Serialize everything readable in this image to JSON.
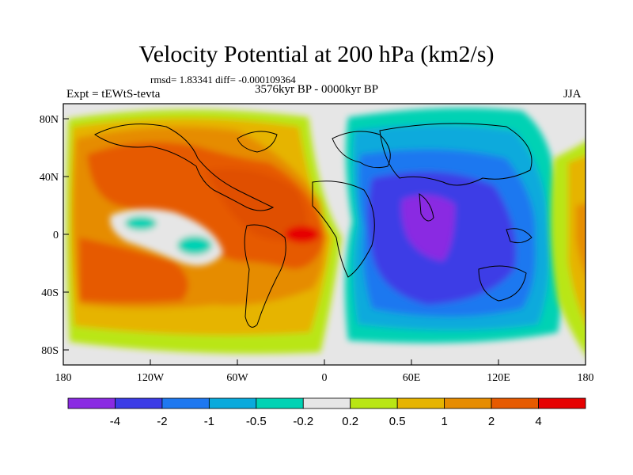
{
  "title": "Velocity Potential at 200 hPa (km2/s)",
  "stats": "rmsd= 1.83341 diff= -0.000109364",
  "experiment": "Expt = tEWtS-tevta",
  "period": "3576kyr BP - 0000kyr BP",
  "season": "JJA",
  "map": {
    "lat_ticks": [
      "80N",
      "40N",
      "0",
      "40S",
      "80S"
    ],
    "lon_ticks": [
      "180",
      "120W",
      "60W",
      "0",
      "60E",
      "120E",
      "180"
    ],
    "missing_color": "#e6e6e6",
    "centers": [
      {
        "label": "strong-positive-east-atlantic",
        "lon": -20,
        "lat": 0,
        "value": 4.3
      },
      {
        "label": "positive-caribbean",
        "lon": -55,
        "lat": 20,
        "value": 3
      },
      {
        "label": "negative-south-asia",
        "lon": 70,
        "lat": 10,
        "value": -4.2
      },
      {
        "label": "near-zero-east-pacific",
        "lon": -105,
        "lat": 5,
        "value": -0.4
      }
    ]
  },
  "colorbar": {
    "colors": [
      "#8a2be2",
      "#3c3ce6",
      "#1e78f0",
      "#0aaadc",
      "#00d2b4",
      "#e6e6e6",
      "#b9e614",
      "#e6b400",
      "#e68c00",
      "#e65a00",
      "#e60000"
    ],
    "labels": [
      "-4",
      "-2",
      "-1",
      "-0.5",
      "-0.2",
      "0.2",
      "0.5",
      "1",
      "2",
      "4"
    ]
  }
}
